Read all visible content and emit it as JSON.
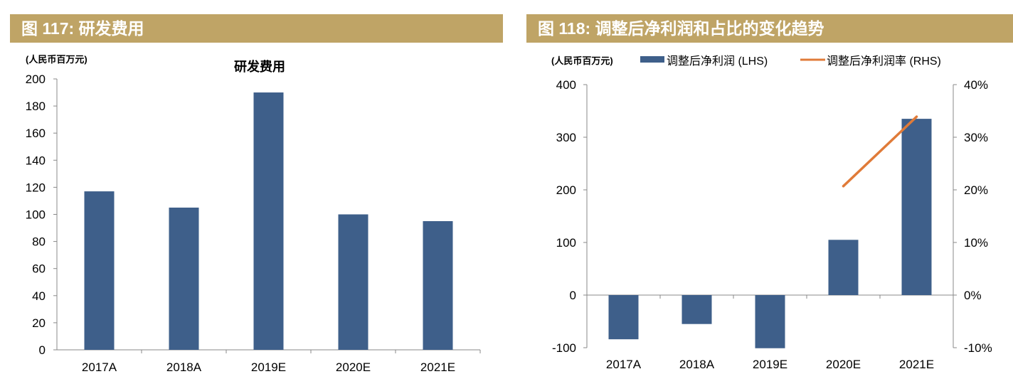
{
  "colors": {
    "header_bg": "#BFA466",
    "bar": "#3E5F8A",
    "line": "#E07B39",
    "axis": "#888888"
  },
  "chart_data": [
    {
      "figure_title": "图 117: 研发费用",
      "type": "bar",
      "title": "研发费用",
      "unit_label": "(人民币百万元)",
      "categories": [
        "2017A",
        "2018A",
        "2019E",
        "2020E",
        "2021E"
      ],
      "values": [
        117,
        105,
        190,
        100,
        95
      ],
      "ylim": [
        0,
        200
      ],
      "yticks": [
        0,
        20,
        40,
        60,
        80,
        100,
        120,
        140,
        160,
        180,
        200
      ],
      "grid": false
    },
    {
      "figure_title": "图 118: 调整后净利润和占比的变化趋势",
      "type": "bar+line",
      "unit_label": "(人民币百万元)",
      "categories": [
        "2017A",
        "2018A",
        "2019E",
        "2020E",
        "2021E"
      ],
      "series": [
        {
          "name": "调整后净利润 (LHS)",
          "type": "bar",
          "axis": "left",
          "values": [
            -84,
            -55,
            -101,
            105,
            335
          ]
        },
        {
          "name": "调整后净利润率 (RHS)",
          "type": "line",
          "axis": "right",
          "values": [
            null,
            null,
            null,
            20.7,
            33.9
          ]
        }
      ],
      "ylim_left": [
        -100,
        400
      ],
      "yticks_left": [
        "-100",
        "0",
        "100",
        "200",
        "300",
        "400"
      ],
      "ylim_right": [
        -10,
        40
      ],
      "yticks_right": [
        "-10%",
        "0%",
        "10%",
        "20%",
        "30%",
        "40%"
      ],
      "legend": "top",
      "grid": false
    }
  ]
}
